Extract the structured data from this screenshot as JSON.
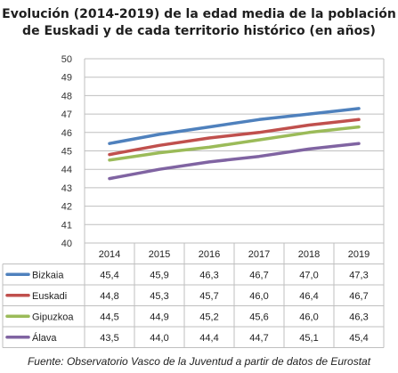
{
  "chart_data": {
    "type": "line",
    "title_lines": [
      "Evolución (2014-2019) de la edad media de la población",
      "de Euskadi y de cada territorio histórico (en años)"
    ],
    "categories": [
      "2014",
      "2015",
      "2016",
      "2017",
      "2018",
      "2019"
    ],
    "ylim": [
      40,
      50
    ],
    "yticks": [
      "40",
      "41",
      "42",
      "43",
      "44",
      "45",
      "46",
      "47",
      "48",
      "49",
      "50"
    ],
    "grid": true,
    "legend": "data-table",
    "series": [
      {
        "name": "Bizkaia",
        "color": "#4f81bd",
        "values": [
          45.4,
          45.9,
          46.3,
          46.7,
          47.0,
          47.3
        ],
        "labels": [
          "45,4",
          "45,9",
          "46,3",
          "46,7",
          "47,0",
          "47,3"
        ]
      },
      {
        "name": "Euskadi",
        "color": "#c0504d",
        "values": [
          44.8,
          45.3,
          45.7,
          46.0,
          46.4,
          46.7
        ],
        "labels": [
          "44,8",
          "45,3",
          "45,7",
          "46,0",
          "46,4",
          "46,7"
        ]
      },
      {
        "name": "Gipuzkoa",
        "color": "#9bbb59",
        "values": [
          44.5,
          44.9,
          45.2,
          45.6,
          46.0,
          46.3
        ],
        "labels": [
          "44,5",
          "44,9",
          "45,2",
          "45,6",
          "46,0",
          "46,3"
        ]
      },
      {
        "name": "Álava",
        "color": "#8064a2",
        "values": [
          43.5,
          44.0,
          44.4,
          44.7,
          45.1,
          45.4
        ],
        "labels": [
          "43,5",
          "44,0",
          "44,4",
          "44,7",
          "45,1",
          "45,4"
        ]
      }
    ]
  },
  "source": "Fuente: Observatorio Vasco de la Juventud a partir de datos de Eurostat"
}
